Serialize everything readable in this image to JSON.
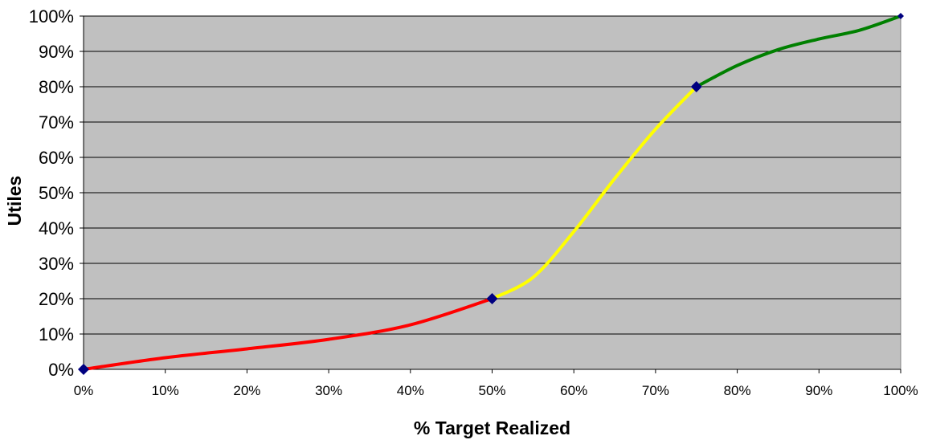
{
  "chart_data": {
    "type": "line",
    "title": "",
    "xlabel": "% Target Realized",
    "ylabel": "Utiles",
    "xlim": [
      0,
      100
    ],
    "ylim": [
      0,
      100
    ],
    "grid": true,
    "background_color": "#c0c0c0",
    "marker_color": "#000080",
    "x_ticks": [
      0,
      10,
      20,
      30,
      40,
      50,
      60,
      70,
      80,
      90,
      100
    ],
    "x_tick_labels": [
      "0%",
      "10%",
      "20%",
      "30%",
      "40%",
      "50%",
      "60%",
      "70%",
      "80%",
      "90%",
      "100%"
    ],
    "y_ticks": [
      0,
      10,
      20,
      30,
      40,
      50,
      60,
      70,
      80,
      90,
      100
    ],
    "y_tick_labels": [
      "0%",
      "10%",
      "20%",
      "30%",
      "40%",
      "50%",
      "60%",
      "70%",
      "80%",
      "90%",
      "100%"
    ],
    "points": [
      {
        "x": 0,
        "y": 0
      },
      {
        "x": 50,
        "y": 20
      },
      {
        "x": 75,
        "y": 80
      },
      {
        "x": 100,
        "y": 100
      }
    ],
    "segments": [
      {
        "color": "#ff0000",
        "x": [
          0,
          10,
          20,
          30,
          40,
          50
        ],
        "y": [
          0,
          3.3,
          5.8,
          8.5,
          12.6,
          20
        ]
      },
      {
        "color": "#ffff00",
        "x": [
          50,
          55,
          60,
          65,
          70,
          75
        ],
        "y": [
          20,
          26,
          39,
          54,
          68,
          80
        ]
      },
      {
        "color": "#008000",
        "x": [
          75,
          80,
          85,
          90,
          95,
          100
        ],
        "y": [
          80,
          86,
          90.5,
          93.5,
          96,
          100
        ]
      }
    ]
  }
}
